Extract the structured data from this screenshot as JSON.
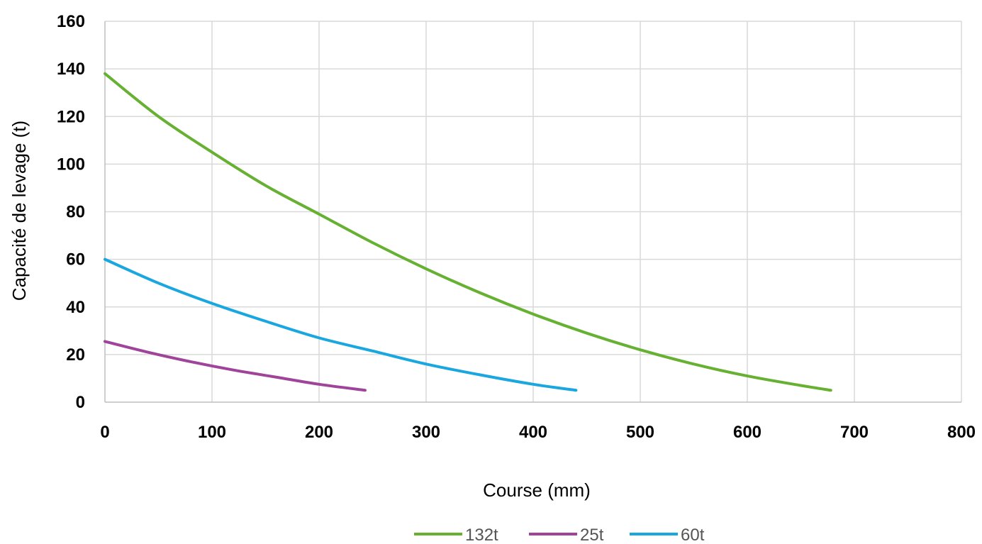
{
  "chart_data": {
    "type": "line",
    "title": "",
    "xlabel": "Course (mm)",
    "ylabel": "Capacité de levage (t)",
    "xlim": [
      0,
      800
    ],
    "ylim": [
      0,
      160
    ],
    "xticks": [
      "0",
      "100",
      "200",
      "300",
      "400",
      "500",
      "600",
      "700",
      "800"
    ],
    "yticks": [
      "0",
      "20",
      "40",
      "60",
      "80",
      "100",
      "120",
      "140",
      "160"
    ],
    "grid": true,
    "legend_position": "bottom",
    "series": [
      {
        "name": "132t",
        "color": "#66b032",
        "points": [
          [
            0,
            138
          ],
          [
            50,
            120
          ],
          [
            100,
            105
          ],
          [
            150,
            91
          ],
          [
            200,
            79
          ],
          [
            250,
            67
          ],
          [
            300,
            56
          ],
          [
            350,
            46
          ],
          [
            400,
            37
          ],
          [
            450,
            29
          ],
          [
            500,
            22
          ],
          [
            550,
            16
          ],
          [
            600,
            11
          ],
          [
            650,
            7
          ],
          [
            678,
            5
          ]
        ]
      },
      {
        "name": "25t",
        "color": "#a0439a",
        "points": [
          [
            0,
            25.5
          ],
          [
            40,
            21
          ],
          [
            80,
            17
          ],
          [
            120,
            13.5
          ],
          [
            160,
            10.5
          ],
          [
            200,
            7.5
          ],
          [
            243,
            5
          ]
        ]
      },
      {
        "name": "60t",
        "color": "#1aa7e0",
        "points": [
          [
            0,
            60
          ],
          [
            50,
            50
          ],
          [
            100,
            41.5
          ],
          [
            150,
            34
          ],
          [
            200,
            27
          ],
          [
            250,
            21.5
          ],
          [
            300,
            16
          ],
          [
            350,
            11.5
          ],
          [
            400,
            7.5
          ],
          [
            440,
            5
          ]
        ]
      }
    ]
  }
}
